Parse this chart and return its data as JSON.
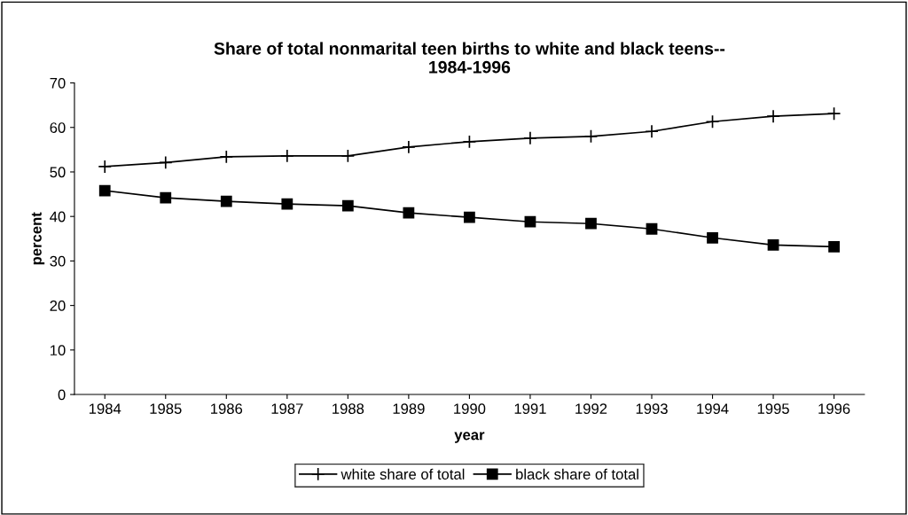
{
  "chart_data": {
    "type": "line",
    "title": "Share of total nonmarital teen births to white and black teens--\n1984-1996",
    "xlabel": "year",
    "ylabel": "percent",
    "categories": [
      "1984",
      "1985",
      "1986",
      "1987",
      "1988",
      "1989",
      "1990",
      "1991",
      "1992",
      "1993",
      "1994",
      "1995",
      "1996"
    ],
    "series": [
      {
        "name": "white share of total",
        "color": "#000000",
        "marker": "cross",
        "values": [
          51.2,
          52.1,
          53.4,
          53.6,
          53.6,
          55.6,
          56.8,
          57.6,
          58.0,
          59.1,
          61.3,
          62.5,
          63.1
        ]
      },
      {
        "name": "black share of total",
        "color": "#000000",
        "marker": "square",
        "values": [
          45.8,
          44.2,
          43.4,
          42.8,
          42.4,
          40.8,
          39.8,
          38.8,
          38.4,
          37.2,
          35.2,
          33.6,
          33.2
        ]
      }
    ],
    "ylim": [
      0,
      70
    ],
    "yticks": [
      0,
      10,
      20,
      30,
      40,
      50,
      60,
      70
    ],
    "grid": false,
    "legend": "bottom",
    "line_style": "solid"
  }
}
